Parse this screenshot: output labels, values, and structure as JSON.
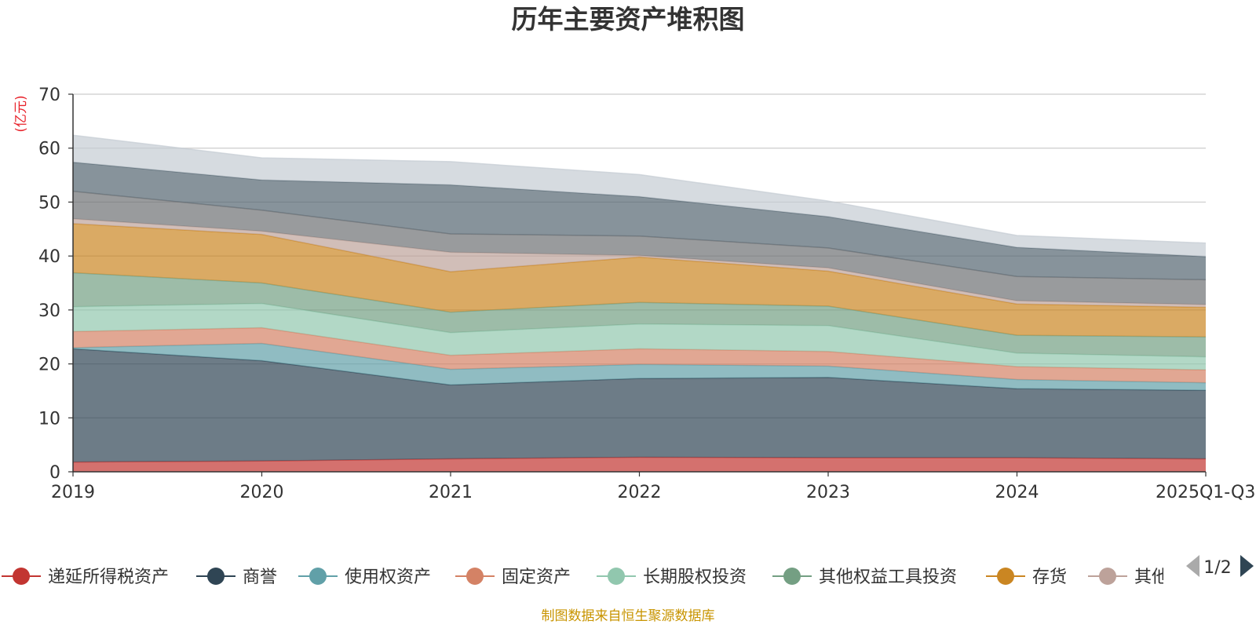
{
  "chart_data": {
    "type": "area",
    "stacked": true,
    "title": "历年主要资产堆积图",
    "ylabel": "(亿元)",
    "xlabel": "",
    "categories": [
      "2019",
      "2020",
      "2021",
      "2022",
      "2023",
      "2024",
      "2025Q1-Q3"
    ],
    "ylim": [
      0,
      70
    ],
    "yticks": [
      0,
      10,
      20,
      30,
      40,
      50,
      60,
      70
    ],
    "grid": true,
    "series": [
      {
        "name": "递延所得税资产",
        "color": "#c23531",
        "legend": true,
        "values": [
          1.8,
          2.0,
          2.4,
          2.7,
          2.6,
          2.6,
          2.4
        ]
      },
      {
        "name": "商誉",
        "color": "#2f4554",
        "legend": true,
        "values": [
          21.0,
          18.6,
          13.7,
          14.6,
          14.9,
          12.8,
          12.7
        ]
      },
      {
        "name": "使用权资产",
        "color": "#61a0a8",
        "legend": true,
        "values": [
          0.2,
          3.2,
          2.9,
          2.6,
          2.1,
          1.7,
          1.4
        ]
      },
      {
        "name": "固定资产",
        "color": "#d48265",
        "legend": true,
        "values": [
          3.0,
          2.9,
          2.6,
          2.9,
          2.7,
          2.4,
          2.4
        ]
      },
      {
        "name": "长期股权投资",
        "color": "#91c7ae",
        "legend": true,
        "values": [
          4.6,
          4.5,
          4.2,
          4.6,
          4.8,
          2.5,
          2.4
        ]
      },
      {
        "name": "其他权益工具投资",
        "color": "#749f83",
        "legend": true,
        "values": [
          6.3,
          3.8,
          3.8,
          4.0,
          3.6,
          3.3,
          3.7
        ]
      },
      {
        "name": "存货",
        "color": "#ca8622",
        "legend": true,
        "values": [
          9.1,
          9.0,
          7.5,
          8.4,
          6.5,
          5.8,
          5.5
        ]
      },
      {
        "name": "其他",
        "color": "#bda29a",
        "legend": true,
        "values": [
          0.9,
          0.6,
          3.6,
          0.3,
          0.6,
          0.6,
          0.5
        ]
      },
      {
        "name": "series-9",
        "color": "#6e7074",
        "legend": false,
        "values": [
          5.1,
          3.9,
          3.4,
          3.6,
          3.7,
          4.5,
          4.6
        ]
      },
      {
        "name": "series-10",
        "color": "#546570",
        "legend": false,
        "values": [
          5.4,
          5.6,
          9.1,
          7.3,
          5.8,
          5.4,
          4.3
        ]
      },
      {
        "name": "series-11",
        "color": "#c4ccd3",
        "legend": false,
        "values": [
          5.0,
          4.1,
          4.3,
          4.1,
          2.9,
          2.2,
          2.5
        ]
      }
    ],
    "legend_position": "bottom",
    "legend_page": "1/2",
    "source_note": "制图数据来自恒生聚源数据库"
  }
}
